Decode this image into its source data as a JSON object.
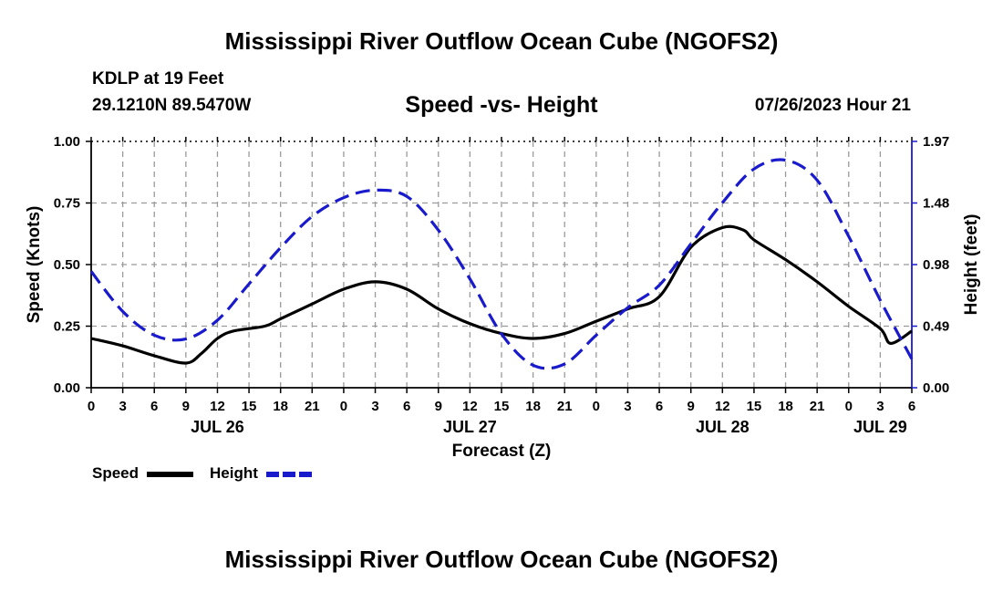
{
  "chart_data": {
    "type": "line",
    "title": "Mississippi River Outflow Ocean Cube (NGOFS2)",
    "subtitle": "Speed -vs- Height",
    "station": "KDLP at 19 Feet",
    "location": "29.1210N  89.5470W",
    "datetime": "07/26/2023 Hour 21",
    "xlabel": "Forecast (Z)",
    "ylabel_left": "Speed (Knots)",
    "ylabel_right": "Height (feet)",
    "x_hours_range": [
      0,
      78
    ],
    "x_tick_labels": [
      "0",
      "3",
      "6",
      "9",
      "12",
      "15",
      "18",
      "21",
      "0",
      "3",
      "6",
      "9",
      "12",
      "15",
      "18",
      "21",
      "0",
      "3",
      "6",
      "9",
      "12",
      "15",
      "18",
      "21",
      "0",
      "3",
      "6"
    ],
    "day_labels": [
      {
        "label": "JUL 26",
        "hour": 12
      },
      {
        "label": "JUL 27",
        "hour": 36
      },
      {
        "label": "JUL 28",
        "hour": 60
      },
      {
        "label": "JUL 29",
        "hour": 75
      }
    ],
    "ylim_left": [
      0,
      1.0
    ],
    "y_ticks_left": [
      "0.00",
      "0.25",
      "0.50",
      "0.75",
      "1.00"
    ],
    "ylim_right": [
      0,
      1.97
    ],
    "y_ticks_right": [
      "0.00",
      "0.49",
      "0.98",
      "1.48",
      "1.97"
    ],
    "grid": true,
    "series": [
      {
        "name": "Speed",
        "axis": "left",
        "color": "#000000",
        "style": "solid",
        "x": [
          0,
          3,
          6,
          9,
          10.5,
          12,
          13.5,
          16.5,
          18,
          21,
          24,
          27,
          30,
          33,
          36,
          39,
          42,
          45,
          48,
          51,
          54,
          57,
          60,
          62,
          63,
          66,
          69,
          72,
          75,
          76,
          78
        ],
        "values": [
          0.2,
          0.17,
          0.13,
          0.1,
          0.14,
          0.2,
          0.23,
          0.25,
          0.28,
          0.34,
          0.4,
          0.43,
          0.4,
          0.32,
          0.26,
          0.22,
          0.2,
          0.22,
          0.27,
          0.32,
          0.37,
          0.57,
          0.65,
          0.64,
          0.6,
          0.52,
          0.43,
          0.33,
          0.24,
          0.18,
          0.23
        ]
      },
      {
        "name": "Height",
        "axis": "right",
        "color": "#1a1acd",
        "style": "dashed",
        "x": [
          0,
          3,
          6,
          9,
          12,
          15,
          18,
          21,
          24,
          27,
          30,
          33,
          36,
          39,
          42,
          45,
          48,
          51,
          54,
          57,
          60,
          63,
          66,
          69,
          72,
          75,
          78
        ],
        "values": [
          0.93,
          0.61,
          0.42,
          0.39,
          0.54,
          0.83,
          1.12,
          1.37,
          1.52,
          1.58,
          1.53,
          1.26,
          0.87,
          0.43,
          0.18,
          0.19,
          0.42,
          0.64,
          0.82,
          1.15,
          1.48,
          1.75,
          1.82,
          1.66,
          1.21,
          0.7,
          0.23
        ]
      }
    ],
    "legend": [
      {
        "label": "Speed",
        "color": "#000000",
        "style": "solid"
      },
      {
        "label": "Height",
        "color": "#1a1acd",
        "style": "dashed"
      }
    ],
    "footer_title": "Mississippi River Outflow Ocean Cube (NGOFS2)"
  }
}
